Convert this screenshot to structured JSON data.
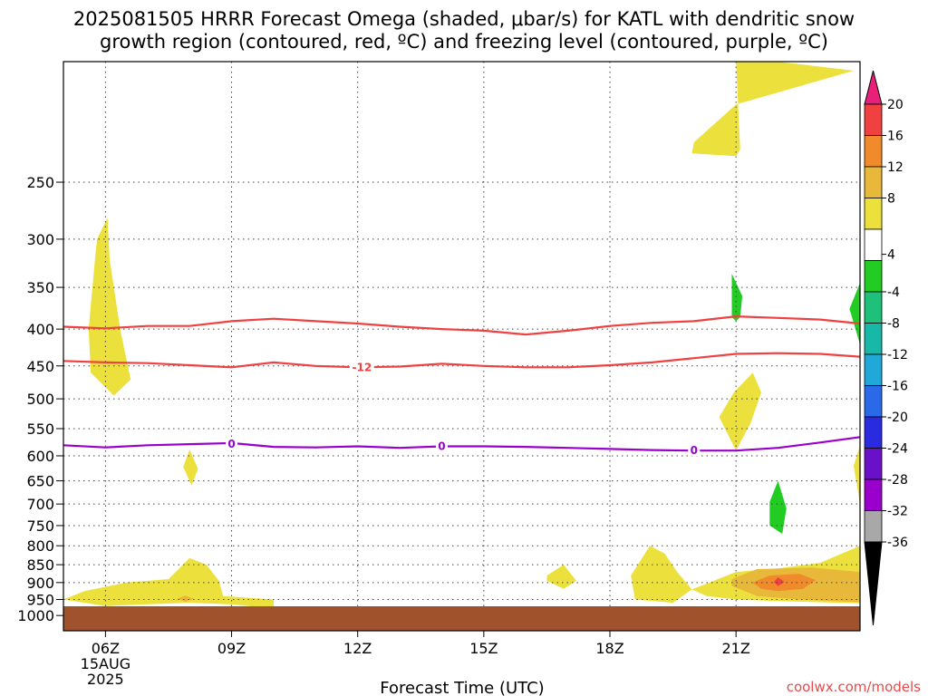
{
  "title": {
    "line1": "2025081505 HRRR Forecast Omega (shaded, μbar/s) for KATL with dendritic snow",
    "line2": "growth region (contoured, red, ºC) and freezing level (contoured, purple, ºC)"
  },
  "credit": "coolwx.com/models",
  "colors": {
    "dgz_contour": "#f04040",
    "freezing_contour": "#9900cc",
    "ground": "#a0522d",
    "credit": "#e84a4a"
  },
  "chart_data": {
    "type": "heatmap",
    "xlabel": "Forecast Time (UTC)",
    "ylabel": "",
    "xlim": [
      5,
      23.95
    ],
    "ylim": [
      1050,
      170
    ],
    "y_scale": "log-pressure",
    "grid": true,
    "x_ticks": [
      {
        "x": 6,
        "label": "06Z",
        "sub": [
          "15AUG",
          "2025"
        ]
      },
      {
        "x": 9,
        "label": "09Z",
        "sub": []
      },
      {
        "x": 12,
        "label": "12Z",
        "sub": []
      },
      {
        "x": 15,
        "label": "15Z",
        "sub": []
      },
      {
        "x": 18,
        "label": "18Z",
        "sub": []
      },
      {
        "x": 21,
        "label": "21Z",
        "sub": []
      }
    ],
    "y_ticks": [
      250,
      300,
      350,
      400,
      450,
      500,
      550,
      600,
      650,
      700,
      750,
      800,
      850,
      900,
      950,
      1000
    ],
    "contours": [
      {
        "name": "dgz-upper",
        "color": "#f04040",
        "label": "",
        "label_at": null,
        "points": [
          [
            5,
            397
          ],
          [
            6,
            399
          ],
          [
            7,
            396
          ],
          [
            8,
            396
          ],
          [
            9,
            390
          ],
          [
            10,
            387
          ],
          [
            11,
            390
          ],
          [
            12,
            393
          ],
          [
            13,
            397
          ],
          [
            14,
            400
          ],
          [
            15,
            402
          ],
          [
            16,
            407
          ],
          [
            17,
            402
          ],
          [
            18,
            396
          ],
          [
            19,
            392
          ],
          [
            20,
            390
          ],
          [
            21,
            384
          ],
          [
            22,
            386
          ],
          [
            23,
            388
          ],
          [
            23.95,
            393
          ]
        ]
      },
      {
        "name": "dgz-lower",
        "color": "#f04040",
        "label": "-12",
        "label_at": [
          12.1,
          452
        ],
        "points": [
          [
            5,
            443
          ],
          [
            6,
            445
          ],
          [
            7,
            446
          ],
          [
            8,
            449
          ],
          [
            9,
            452
          ],
          [
            10,
            445
          ],
          [
            11,
            450
          ],
          [
            12,
            452
          ],
          [
            13,
            451
          ],
          [
            14,
            447
          ],
          [
            15,
            450
          ],
          [
            16,
            452
          ],
          [
            17,
            452
          ],
          [
            18,
            449
          ],
          [
            19,
            445
          ],
          [
            20,
            439
          ],
          [
            21,
            433
          ],
          [
            22,
            432
          ],
          [
            23,
            433
          ],
          [
            23.95,
            437
          ]
        ]
      },
      {
        "name": "freezing-level",
        "color": "#9900cc",
        "label": "0",
        "label_at": [
          9,
          578
        ],
        "extra_labels": [
          [
            14,
            582
          ],
          [
            20,
            590
          ]
        ],
        "points": [
          [
            5,
            580
          ],
          [
            6,
            584
          ],
          [
            7,
            580
          ],
          [
            8,
            578
          ],
          [
            9,
            576
          ],
          [
            10,
            583
          ],
          [
            11,
            584
          ],
          [
            12,
            582
          ],
          [
            13,
            585
          ],
          [
            14,
            582
          ],
          [
            15,
            582
          ],
          [
            16,
            583
          ],
          [
            17,
            585
          ],
          [
            18,
            587
          ],
          [
            19,
            589
          ],
          [
            20,
            590
          ],
          [
            21,
            590
          ],
          [
            22,
            585
          ],
          [
            23,
            575
          ],
          [
            23.95,
            565
          ]
        ]
      }
    ],
    "shaded_regions": [
      {
        "omega": 6,
        "color": "#ece13c",
        "points": [
          [
            21,
            170
          ],
          [
            22,
            170
          ],
          [
            23.8,
            175
          ],
          [
            21,
            195
          ],
          [
            20,
            220
          ],
          [
            19.95,
            228
          ],
          [
            21,
            230
          ],
          [
            21.1,
            225
          ]
        ]
      },
      {
        "omega": 6,
        "color": "#ece13c",
        "points": [
          [
            5.8,
            300
          ],
          [
            6.05,
            280
          ],
          [
            6.1,
            320
          ],
          [
            6.35,
            400
          ],
          [
            6.6,
            470
          ],
          [
            6.2,
            495
          ],
          [
            5.65,
            460
          ],
          [
            5.6,
            400
          ],
          [
            5.75,
            320
          ]
        ]
      },
      {
        "omega": -6,
        "color": "#22cc22",
        "points": [
          [
            20.9,
            385
          ],
          [
            20.9,
            335
          ],
          [
            21.15,
            360
          ],
          [
            21.1,
            385
          ],
          [
            21,
            390
          ]
        ]
      },
      {
        "omega": -6,
        "color": "#22cc22",
        "points": [
          [
            23.95,
            345
          ],
          [
            23.7,
            375
          ],
          [
            23.95,
            420
          ]
        ]
      },
      {
        "omega": 6,
        "color": "#ece13c",
        "points": [
          [
            20.95,
            490
          ],
          [
            21.4,
            460
          ],
          [
            21.6,
            490
          ],
          [
            21.35,
            540
          ],
          [
            21,
            590
          ],
          [
            20.6,
            530
          ]
        ]
      },
      {
        "omega": 6,
        "color": "#ece13c",
        "points": [
          [
            23.95,
            580
          ],
          [
            23.8,
            620
          ],
          [
            23.95,
            700
          ]
        ]
      },
      {
        "omega": 6,
        "color": "#ece13c",
        "points": [
          [
            7.85,
            622
          ],
          [
            8,
            588
          ],
          [
            8.2,
            625
          ],
          [
            8.05,
            660
          ]
        ]
      },
      {
        "omega": -6,
        "color": "#22cc22",
        "points": [
          [
            21.8,
            695
          ],
          [
            22,
            650
          ],
          [
            22.2,
            710
          ],
          [
            22.1,
            770
          ],
          [
            21.8,
            750
          ]
        ]
      },
      {
        "omega": 6,
        "color": "#ece13c",
        "points": [
          [
            5,
            950
          ],
          [
            5.5,
            925
          ],
          [
            6.5,
            900
          ],
          [
            7.5,
            890
          ],
          [
            8,
            832
          ],
          [
            8.4,
            850
          ],
          [
            8.7,
            895
          ],
          [
            8.8,
            940
          ],
          [
            10,
            950
          ],
          [
            10,
            978
          ],
          [
            9,
            965
          ],
          [
            8,
            960
          ],
          [
            7,
            965
          ],
          [
            6,
            970
          ],
          [
            5,
            950
          ]
        ]
      },
      {
        "omega": 6,
        "color": "#ece13c",
        "points": [
          [
            16.5,
            880
          ],
          [
            16.9,
            850
          ],
          [
            17.2,
            895
          ],
          [
            16.9,
            918
          ],
          [
            16.5,
            895
          ]
        ]
      },
      {
        "omega": 6,
        "color": "#ece13c",
        "points": [
          [
            18.5,
            880
          ],
          [
            18.95,
            800
          ],
          [
            19.3,
            820
          ],
          [
            19.6,
            870
          ],
          [
            19.95,
            920
          ],
          [
            19.5,
            960
          ],
          [
            18.6,
            950
          ]
        ]
      },
      {
        "omega": 6,
        "color": "#ece13c",
        "points": [
          [
            19.95,
            920
          ],
          [
            21,
            870
          ],
          [
            22,
            860
          ],
          [
            23,
            845
          ],
          [
            23.95,
            800
          ],
          [
            23.95,
            962
          ],
          [
            22,
            955
          ],
          [
            21,
            950
          ],
          [
            20.3,
            940
          ]
        ]
      },
      {
        "omega": 10,
        "color": "#e8b83a",
        "points": [
          [
            20.9,
            890
          ],
          [
            21.5,
            862
          ],
          [
            22.8,
            858
          ],
          [
            23.95,
            870
          ],
          [
            23.95,
            958
          ],
          [
            22.5,
            950
          ],
          [
            21.5,
            940
          ],
          [
            20.9,
            910
          ]
        ]
      },
      {
        "omega": 14,
        "color": "#f08a2a",
        "points": [
          [
            21.4,
            900
          ],
          [
            21.8,
            880
          ],
          [
            22.5,
            875
          ],
          [
            22.9,
            893
          ],
          [
            22.6,
            918
          ],
          [
            22,
            925
          ],
          [
            21.6,
            918
          ]
        ]
      },
      {
        "omega": 18,
        "color": "#f04040",
        "points": [
          [
            21.9,
            898
          ],
          [
            22,
            885
          ],
          [
            22.15,
            898
          ],
          [
            22,
            910
          ]
        ]
      },
      {
        "omega": 10,
        "color": "#e8b83a",
        "points": [
          [
            7.7,
            948
          ],
          [
            7.9,
            938
          ],
          [
            8.1,
            948
          ],
          [
            7.9,
            957
          ]
        ]
      }
    ],
    "colorbar": {
      "labels": [
        "20",
        "16",
        "12",
        "8",
        "4",
        "-4",
        "-8",
        "-12",
        "-16",
        "-20",
        "-24",
        "-28",
        "-32",
        "-36"
      ],
      "colors": [
        "#f04040",
        "#f08a2a",
        "#e8b83a",
        "#ece13c",
        "#ffffff",
        "#22cc22",
        "#1ec07a",
        "#18b8a8",
        "#20a8d8",
        "#2a6ae8",
        "#2a2ae0",
        "#6a10c8",
        "#9900cc",
        "#a8a8a8"
      ],
      "top_color": "#e8207a",
      "bottom_color": "#000000"
    }
  }
}
